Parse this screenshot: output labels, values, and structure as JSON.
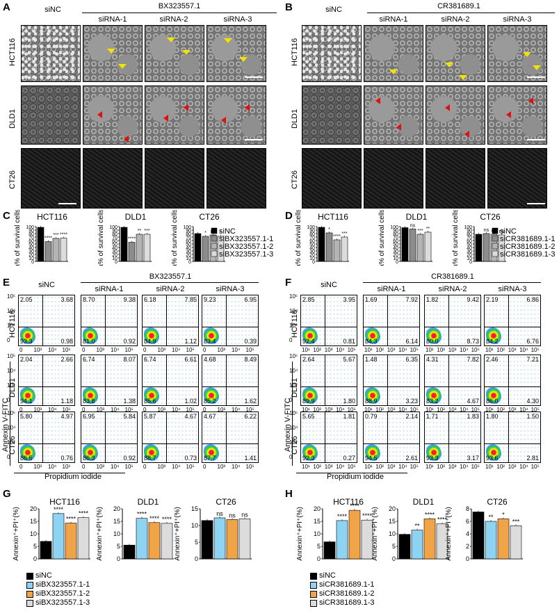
{
  "panel_labels": [
    "A",
    "B",
    "C",
    "D",
    "E",
    "F",
    "G",
    "H"
  ],
  "micro": {
    "A": {
      "group": "BX323557.1",
      "cols": [
        "siNC",
        "siRNA-1",
        "siRNA-2",
        "siRNA-3"
      ],
      "rows": [
        "HCT116",
        "DLD1",
        "CT26"
      ]
    },
    "B": {
      "group": "CR381689.1",
      "cols": [
        "siNC",
        "siRNA-1",
        "siRNA-2",
        "siRNA-3"
      ],
      "rows": [
        "HCT116",
        "DLD1",
        "CT26"
      ]
    }
  },
  "flow": {
    "E": {
      "group": "BX323557.1",
      "cols": [
        "siNC",
        "siRNA-1",
        "siRNA-2",
        "siRNA-3"
      ],
      "rows": [
        "HCT116",
        "DLD1",
        "CT26"
      ],
      "y_label": "Annexin V-FITC",
      "x_label": "Propidium iodide",
      "quadrants": [
        [
          [
            "2.05",
            "3.68",
            "93.3",
            "0.98"
          ],
          [
            "8.70",
            "9.38",
            "81.0",
            "0.92"
          ],
          [
            "6.18",
            "7.85",
            "84.9",
            "1.12"
          ],
          [
            "9.23",
            "6.95",
            "83.4",
            "0.39"
          ]
        ],
        [
          [
            "2.04",
            "2.66",
            "94.1",
            "1.18"
          ],
          [
            "6.74",
            "8.07",
            "83.8",
            "1.38"
          ],
          [
            "6.74",
            "6.61",
            "85.6",
            "1.02"
          ],
          [
            "4.68",
            "8.49",
            "85.2",
            "1.62"
          ]
        ],
        [
          [
            "5.80",
            "4.97",
            "86.5",
            "0.76"
          ],
          [
            "6.95",
            "5.84",
            "86.3",
            "0.92"
          ],
          [
            "5.87",
            "4.67",
            "88.7",
            "0.73"
          ],
          [
            "4.67",
            "6.22",
            "87.7",
            "1.41"
          ]
        ]
      ]
    },
    "F": {
      "group": "CR381689.1",
      "cols": [
        "siNC",
        "siRNA-1",
        "siRNA-2",
        "siRNA-3"
      ],
      "rows": [
        "HCT116",
        "DLD1",
        "CT26"
      ],
      "y_label": "Annexin V-FITC",
      "x_label": "Propidium iodide",
      "quadrants": [
        [
          [
            "2.85",
            "3.95",
            "92.4",
            "0.81"
          ],
          [
            "1.69",
            "7.92",
            "84.3",
            "6.14"
          ],
          [
            "1.82",
            "9.42",
            "80.0",
            "8.73"
          ],
          [
            "2.19",
            "6.86",
            "84.2",
            "6.76"
          ]
        ],
        [
          [
            "2.64",
            "5.67",
            "89.9",
            "1.80"
          ],
          [
            "1.48",
            "6.35",
            "88.9",
            "3.23"
          ],
          [
            "4.31",
            "7.82",
            "83.2",
            "4.67"
          ],
          [
            "2.46",
            "7.21",
            "86.0",
            "4.30"
          ]
        ],
        [
          [
            "5.65",
            "1.81",
            "92.3",
            "0.27"
          ],
          [
            "0.79",
            "2.14",
            "94.5",
            "2.61"
          ],
          [
            "1.71",
            "1.83",
            "93.3",
            "3.17"
          ],
          [
            "1.80",
            "1.50",
            "93.6",
            "2.81"
          ]
        ]
      ]
    }
  },
  "axis_ticks": {
    "flow_y": [
      "10⁵",
      "10⁴",
      "10³",
      "0"
    ],
    "flow_x": [
      "0",
      "10³",
      "10⁴",
      "10⁵"
    ],
    "flow_x_F": [
      "10¹",
      "10²",
      "10³",
      "10⁴",
      "10⁵"
    ]
  },
  "colors": {
    "siNC": "#000000",
    "si1_gray": "#8c8c8c",
    "si2_gray": "#b4b4b4",
    "si3_gray": "#dcdcdc",
    "si1_blue": "#8ed3f1",
    "si2_orange": "#f0a447",
    "si3_light": "#dcdcdc",
    "arrow_yellow": "#f2e200",
    "arrow_red": "#e01010"
  },
  "chart_data": [
    {
      "panel": "C",
      "type": "bar",
      "title": "HCT116",
      "ylabel": "Area% of survival cells",
      "ylim": [
        0,
        100
      ],
      "yticks": [
        0,
        10,
        20,
        30,
        40,
        50,
        60,
        70,
        80,
        90,
        100
      ],
      "series": [
        {
          "values": [
            98,
            57,
            66,
            67
          ]
        }
      ],
      "sig": [
        "",
        "****",
        "***",
        "****"
      ]
    },
    {
      "panel": "C",
      "type": "bar",
      "title": "DLD1",
      "ylabel": "Area% of survival cells",
      "ylim": [
        0,
        100
      ],
      "yticks": [
        0,
        10,
        20,
        30,
        40,
        50,
        60,
        70,
        80,
        90,
        100
      ],
      "series": [
        {
          "values": [
            98,
            55,
            78,
            78
          ]
        }
      ],
      "sig": [
        "",
        "****",
        "**",
        "***"
      ]
    },
    {
      "panel": "C",
      "type": "bar",
      "title": "CT26",
      "ylabel": "Area% of survival cells",
      "ylim": [
        0,
        100
      ],
      "yticks": [
        0,
        10,
        20,
        30,
        40,
        50,
        60,
        70,
        80,
        90,
        100
      ],
      "series": [
        {
          "values": [
            80,
            72,
            76,
            72
          ]
        }
      ],
      "sig": [
        "",
        "*",
        "ns",
        "*"
      ],
      "legend": [
        "siNC",
        "siBX323557.1-1",
        "siBX323557.1-2",
        "siBX323557.1-3"
      ]
    },
    {
      "panel": "D",
      "type": "bar",
      "title": "HCT116",
      "ylabel": "Area% of survival cells",
      "ylim": [
        0,
        100
      ],
      "yticks": [
        0,
        10,
        20,
        30,
        40,
        50,
        60,
        70,
        80,
        90,
        100
      ],
      "series": [
        {
          "values": [
            98,
            82,
            62,
            70
          ]
        }
      ],
      "sig": [
        "",
        "*",
        "****",
        "***"
      ]
    },
    {
      "panel": "D",
      "type": "bar",
      "title": "DLD1",
      "ylabel": "Area% of survival cells",
      "ylim": [
        0,
        100
      ],
      "yticks": [
        0,
        10,
        20,
        30,
        40,
        50,
        60,
        70,
        80,
        90,
        100
      ],
      "series": [
        {
          "values": [
            97,
            93,
            78,
            84
          ]
        }
      ],
      "sig": [
        "",
        "ns",
        "***",
        "**"
      ]
    },
    {
      "panel": "D",
      "type": "bar",
      "title": "CT26",
      "ylabel": "Area% of survival cells",
      "ylim": [
        0,
        100
      ],
      "yticks": [
        0,
        10,
        20,
        30,
        40,
        50,
        60,
        70,
        80,
        90,
        100
      ],
      "series": [
        {
          "values": [
            78,
            80,
            78,
            76
          ]
        }
      ],
      "sig": [
        "",
        "ns",
        "ns",
        "ns"
      ],
      "legend": [
        "siNC",
        "siCR381689.1-1",
        "siCR381689.1-2",
        "siCR381689.1-3"
      ]
    },
    {
      "panel": "G",
      "type": "bar",
      "title": "HCT116",
      "ylabel": "Annexin⁺+PI⁺(%)",
      "ylim": [
        0,
        20
      ],
      "yticks": [
        0,
        5,
        10,
        15,
        20
      ],
      "series": [
        {
          "values": [
            7.0,
            18.1,
            14.3,
            16.5
          ]
        }
      ],
      "sig": [
        "",
        "****",
        "****",
        "****"
      ]
    },
    {
      "panel": "G",
      "type": "bar",
      "title": "DLD1",
      "ylabel": "Annexin⁺+PI⁺(%)",
      "ylim": [
        0,
        20
      ],
      "yticks": [
        0,
        5,
        10,
        15,
        20
      ],
      "series": [
        {
          "values": [
            5.5,
            16.2,
            14.5,
            14.2
          ]
        }
      ],
      "sig": [
        "",
        "****",
        "****",
        "****"
      ]
    },
    {
      "panel": "G",
      "type": "bar",
      "title": "CT26",
      "ylabel": "Annexin⁺+PI⁺(%)",
      "ylim": [
        0,
        15
      ],
      "yticks": [
        0,
        5,
        10,
        15
      ],
      "series": [
        {
          "values": [
            11.5,
            12.3,
            11.8,
            12.0
          ]
        }
      ],
      "sig": [
        "",
        "ns",
        "ns",
        "ns"
      ],
      "legend": [
        "siNC",
        "siBX323557.1-1",
        "siBX323557.1-2",
        "siBX323557.1-3"
      ]
    },
    {
      "panel": "H",
      "type": "bar",
      "title": "HCT116",
      "ylabel": "Annexin⁺+PI⁺(%)",
      "ylim": [
        0,
        20
      ],
      "yticks": [
        0,
        5,
        10,
        15,
        20
      ],
      "series": [
        {
          "values": [
            6.8,
            15.3,
            19.4,
            15.5
          ]
        }
      ],
      "sig": [
        "",
        "****",
        "****",
        "****"
      ]
    },
    {
      "panel": "H",
      "type": "bar",
      "title": "DLD1",
      "ylabel": "Annexin⁺+PI⁺(%)",
      "ylim": [
        0,
        20
      ],
      "yticks": [
        0,
        5,
        10,
        15,
        20
      ],
      "series": [
        {
          "values": [
            9.8,
            11.5,
            16.0,
            14.0
          ]
        }
      ],
      "sig": [
        "",
        "**",
        "****",
        "****"
      ]
    },
    {
      "panel": "H",
      "type": "bar",
      "title": "CT26",
      "ylabel": "Annexin⁺+PI⁺(%)",
      "ylim": [
        0,
        8
      ],
      "yticks": [
        0,
        2,
        4,
        6,
        8
      ],
      "series": [
        {
          "values": [
            7.5,
            6.0,
            6.4,
            5.3
          ]
        }
      ],
      "sig": [
        "",
        "**",
        "*",
        "***"
      ],
      "legend": [
        "siNC",
        "siCR381689.1-1",
        "siCR381689.1-2",
        "siCR381689.1-3"
      ]
    }
  ]
}
